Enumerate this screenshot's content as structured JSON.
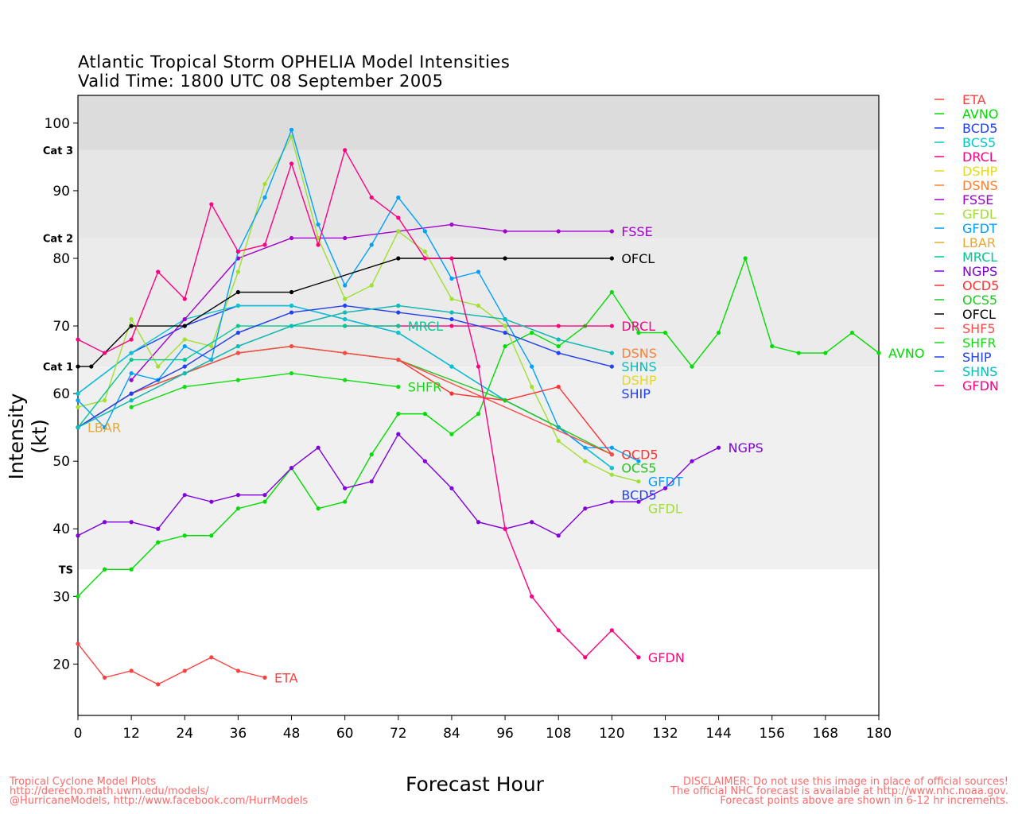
{
  "chart_data": {
    "type": "line",
    "title": "Atlantic Tropical Storm OPHELIA Model Intensities",
    "subtitle": "Valid Time: 1800 UTC 08 September 2005",
    "xlabel": "Forecast Hour",
    "ylabel": "Intensity (kt)",
    "xlim": [
      0,
      180
    ],
    "ylim": [
      12.4,
      104.1
    ],
    "xticks": [
      0,
      12,
      24,
      36,
      48,
      60,
      72,
      84,
      96,
      108,
      120,
      132,
      144,
      156,
      168,
      180
    ],
    "yticks": [
      20,
      30,
      40,
      50,
      60,
      70,
      80,
      90,
      100
    ],
    "bands": [
      {
        "label": "Cat 3",
        "min": 96,
        "color": "#dcdcdc"
      },
      {
        "label": "Cat 2",
        "min": 83,
        "color": "#e6e6e6"
      },
      {
        "label": "Cat 1",
        "min": 64,
        "color": "#ebebeb"
      },
      {
        "label": "TS",
        "min": 34,
        "color": "#f0f0f0"
      }
    ],
    "legend_position": "right",
    "series": [
      {
        "name": "ETA",
        "color": "#ff4040",
        "label": true,
        "x": [
          0,
          6,
          12,
          18,
          24,
          30,
          36,
          42
        ],
        "y": [
          23,
          18,
          19,
          17,
          19,
          21,
          19,
          18
        ]
      },
      {
        "name": "AVNO",
        "color": "#00dd00",
        "label": true,
        "x": [
          0,
          6,
          12,
          18,
          24,
          30,
          36,
          42,
          48,
          54,
          60,
          66,
          72,
          78,
          84,
          90,
          96,
          102,
          108,
          114,
          120,
          126,
          132,
          138,
          144,
          150,
          156,
          162,
          168,
          174,
          180
        ],
        "y": [
          30,
          34,
          34,
          38,
          39,
          39,
          43,
          44,
          49,
          43,
          44,
          51,
          57,
          57,
          54,
          57,
          67,
          69,
          67,
          70,
          75,
          69,
          69,
          64,
          69,
          80,
          67,
          66,
          66,
          69,
          66
        ]
      },
      {
        "name": "BCD5",
        "color": "#2040ff",
        "label": true,
        "x": [
          0,
          12,
          24,
          36,
          48,
          60,
          72,
          84,
          96,
          108,
          120
        ],
        "y": [
          60,
          66,
          70,
          73,
          73,
          71,
          69,
          64,
          59,
          55,
          49
        ]
      },
      {
        "name": "BCS5",
        "color": "#00c8d0",
        "label": false,
        "x": [
          0,
          12,
          24,
          36,
          48,
          60,
          72,
          84,
          96,
          108,
          120
        ],
        "y": [
          60,
          66,
          71,
          73,
          73,
          71,
          69,
          64,
          59,
          55,
          49
        ]
      },
      {
        "name": "DRCL",
        "color": "#ff0080",
        "label": true,
        "x": [
          60,
          72,
          84,
          96,
          108,
          120
        ],
        "y": [
          70,
          70,
          70,
          70,
          70,
          70
        ]
      },
      {
        "name": "DSHP",
        "color": "#e8d820",
        "label": true,
        "x": [
          0,
          12,
          24,
          36,
          48,
          60,
          72,
          84,
          96,
          108,
          120
        ],
        "y": [
          55,
          60,
          64,
          69,
          72,
          73,
          72,
          71,
          69,
          66,
          64
        ]
      },
      {
        "name": "DSNS",
        "color": "#ff8030",
        "label": true,
        "x": [
          0,
          12,
          24,
          36,
          48,
          60,
          72,
          84,
          96,
          108,
          120
        ],
        "y": [
          55,
          59,
          63,
          67,
          70,
          72,
          73,
          72,
          71,
          68,
          66
        ]
      },
      {
        "name": "FSSE",
        "color": "#a000d0",
        "label": true,
        "x": [
          12,
          24,
          36,
          48,
          60,
          72,
          84,
          96,
          108,
          120
        ],
        "y": [
          62,
          71,
          80,
          83,
          83,
          84,
          85,
          84,
          84,
          84
        ]
      },
      {
        "name": "GFDL",
        "color": "#a0e030",
        "label": true,
        "x": [
          0,
          6,
          12,
          18,
          24,
          30,
          36,
          42,
          48,
          54,
          60,
          66,
          72,
          78,
          84,
          90,
          96,
          102,
          108,
          114,
          120,
          126
        ],
        "y": [
          58,
          59,
          71,
          64,
          68,
          67,
          78,
          91,
          98,
          83,
          74,
          76,
          84,
          81,
          74,
          73,
          70,
          61,
          53,
          50,
          48,
          47
        ]
      },
      {
        "name": "GFDT",
        "color": "#00a0ff",
        "label": true,
        "x": [
          0,
          6,
          12,
          18,
          24,
          30,
          36,
          42,
          48,
          54,
          60,
          66,
          72,
          78,
          84,
          90,
          96,
          102,
          108,
          114,
          120,
          126
        ],
        "y": [
          59,
          55,
          63,
          62,
          67,
          65,
          81,
          89,
          99,
          85,
          76,
          82,
          89,
          84,
          77,
          78,
          71,
          64,
          55,
          52,
          52,
          50
        ]
      },
      {
        "name": "LBAR",
        "color": "#e8a830",
        "label": true,
        "x": [
          0
        ],
        "y": [
          55
        ]
      },
      {
        "name": "MRCL",
        "color": "#00c890",
        "label": true,
        "x": [
          0,
          12,
          24,
          36,
          48,
          60,
          72
        ],
        "y": [
          55,
          65,
          65,
          70,
          70,
          70,
          70
        ]
      },
      {
        "name": "NGPS",
        "color": "#8000e0",
        "label": true,
        "x": [
          0,
          6,
          12,
          18,
          24,
          30,
          36,
          42,
          48,
          54,
          60,
          66,
          72,
          78,
          84,
          90,
          96,
          102,
          108,
          114,
          120,
          126,
          132,
          138,
          144
        ],
        "y": [
          39,
          41,
          41,
          40,
          45,
          44,
          45,
          45,
          49,
          52,
          46,
          47,
          54,
          50,
          46,
          41,
          40,
          41,
          39,
          43,
          44,
          44,
          46,
          50,
          52
        ]
      },
      {
        "name": "OCD5",
        "color": "#ff3030",
        "label": true,
        "x": [
          0,
          12,
          24,
          36,
          48,
          60,
          72,
          84,
          96,
          108,
          120
        ],
        "y": [
          55,
          60,
          63,
          66,
          67,
          66,
          65,
          60,
          59,
          61,
          51
        ]
      },
      {
        "name": "OCS5",
        "color": "#20c820",
        "label": true,
        "x": [
          0,
          12,
          24,
          36,
          48,
          60,
          72,
          96,
          120
        ],
        "y": [
          55,
          60,
          63,
          66,
          67,
          66,
          65,
          59,
          51
        ]
      },
      {
        "name": "OFCL",
        "color": "#000000",
        "label": true,
        "x": [
          0,
          3,
          12,
          24,
          36,
          48,
          72,
          96,
          120
        ],
        "y": [
          64,
          64,
          70,
          70,
          75,
          75,
          80,
          80,
          80
        ]
      },
      {
        "name": "SHF5",
        "color": "#ff4848",
        "label": false,
        "x": [
          0,
          12,
          24,
          36,
          48,
          60,
          72,
          120
        ],
        "y": [
          55,
          60,
          63,
          66,
          67,
          66,
          65,
          51
        ]
      },
      {
        "name": "SHFR",
        "color": "#10dd10",
        "label": true,
        "x": [
          12,
          24,
          36,
          48,
          60,
          72
        ],
        "y": [
          58,
          61,
          62,
          63,
          62,
          61
        ]
      },
      {
        "name": "SHIP",
        "color": "#2040ff",
        "label": true,
        "x": [
          0,
          12,
          24,
          36,
          48,
          60,
          72,
          84,
          96,
          108,
          120
        ],
        "y": [
          55,
          60,
          64,
          69,
          72,
          73,
          72,
          71,
          69,
          66,
          64
        ]
      },
      {
        "name": "SHNS",
        "color": "#00c0c0",
        "label": true,
        "x": [
          0,
          12,
          24,
          36,
          48,
          60,
          72,
          84,
          96,
          108,
          120
        ],
        "y": [
          55,
          59,
          63,
          67,
          70,
          72,
          73,
          72,
          71,
          68,
          66
        ]
      },
      {
        "name": "GFDN",
        "color": "#ff0080",
        "label": true,
        "x": [
          0,
          6,
          12,
          18,
          24,
          30,
          36,
          42,
          48,
          54,
          60,
          66,
          72,
          78,
          84,
          90,
          96,
          102,
          108,
          114,
          120,
          126
        ],
        "y": [
          68,
          66,
          68,
          78,
          74,
          88,
          81,
          82,
          94,
          82,
          96,
          89,
          86,
          80,
          80,
          64,
          40,
          30,
          25,
          21,
          25,
          21
        ]
      }
    ]
  },
  "footer": {
    "left": [
      "Tropical Cyclone Model Plots",
      "http://derecho.math.uwm.edu/models/",
      "@HurricaneModels, http://www.facebook.com/HurrModels"
    ],
    "right": [
      "DISCLAIMER: Do not use this image in place of official sources!",
      "The official NHC forecast is available at http://www.nhc.noaa.gov.",
      "Forecast points above are shown in 6-12 hr increments."
    ]
  }
}
